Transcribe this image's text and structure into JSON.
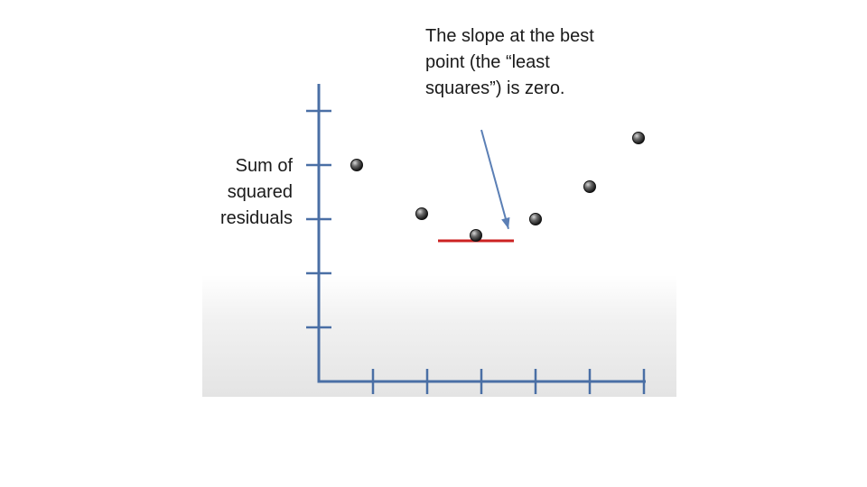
{
  "chart_data": {
    "type": "scatter",
    "title": "",
    "xlabel": "",
    "ylabel": "Sum of squared residuals",
    "xlim": [
      0,
      6
    ],
    "ylim": [
      0,
      6
    ],
    "grid": false,
    "x_ticks": [
      1,
      2,
      3,
      4,
      5,
      6
    ],
    "y_ticks": [
      1,
      2,
      3,
      4,
      5
    ],
    "points": [
      {
        "x": 0.7,
        "y": 4.0
      },
      {
        "x": 1.9,
        "y": 3.1
      },
      {
        "x": 2.9,
        "y": 2.7
      },
      {
        "x": 4.0,
        "y": 3.0
      },
      {
        "x": 5.0,
        "y": 3.6
      },
      {
        "x": 5.9,
        "y": 4.5
      }
    ],
    "tangent_line": {
      "x": [
        2.2,
        3.6
      ],
      "y": 2.6,
      "color": "#cc2222"
    },
    "annotation": {
      "text": "The slope at the best point (the “least squares”) is zero.",
      "arrow_to": {
        "x": 3.5,
        "y": 2.82
      }
    },
    "colors": {
      "axis": "#4a6fa5",
      "point": "#333333",
      "arrow": "#5b7fb5"
    }
  }
}
